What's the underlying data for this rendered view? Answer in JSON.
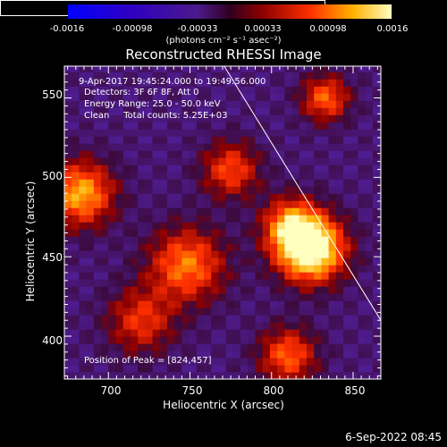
{
  "colorbar": {
    "ticks": [
      "-0.0016",
      "-0.00098",
      "-0.00033",
      "0.00033",
      "0.00098",
      "0.0016"
    ],
    "label": "(photons cm⁻² s⁻¹ asec⁻²)",
    "range": [
      -0.0016,
      0.0016
    ]
  },
  "info": {
    "time": "9-Apr-2017 19:45:24.000 to 19:49:56.000",
    "detectors": "Detectors: 3F 6F 8F, Att 0",
    "energy": "Energy Range: 25.0 - 50.0 keV",
    "clean": "Clean     Total counts: 5.25E+03",
    "peak": "Position of Peak = [824,457]"
  },
  "footer": {
    "date": "6-Sep-2022 08:45"
  },
  "colors": {
    "limb_line": "#ffffff",
    "axes": "#ffffff",
    "background": "#000000"
  },
  "chart_data": {
    "type": "heatmap",
    "title": "Reconstructed RHESSI Image",
    "xlabel": "Heliocentric X (arcsec)",
    "ylabel": "Heliocentric Y (arcsec)",
    "xlim": [
      673,
      867
    ],
    "ylim": [
      373,
      570
    ],
    "xticks": [
      700,
      750,
      800,
      850
    ],
    "yticks": [
      400,
      450,
      500,
      550
    ],
    "peak": [
      824,
      457
    ],
    "sources": [
      {
        "x": 824,
        "y": 455,
        "strength": 1.0,
        "sigma": 14
      },
      {
        "x": 812,
        "y": 470,
        "strength": 0.55,
        "sigma": 12
      },
      {
        "x": 683,
        "y": 490,
        "strength": 0.65,
        "sigma": 14
      },
      {
        "x": 748,
        "y": 445,
        "strength": 0.55,
        "sigma": 16
      },
      {
        "x": 775,
        "y": 505,
        "strength": 0.45,
        "sigma": 12
      },
      {
        "x": 833,
        "y": 550,
        "strength": 0.5,
        "sigma": 10
      },
      {
        "x": 720,
        "y": 410,
        "strength": 0.4,
        "sigma": 14
      },
      {
        "x": 810,
        "y": 388,
        "strength": 0.5,
        "sigma": 12
      }
    ],
    "limb_line": [
      [
        771,
        570
      ],
      [
        867,
        410
      ]
    ]
  }
}
